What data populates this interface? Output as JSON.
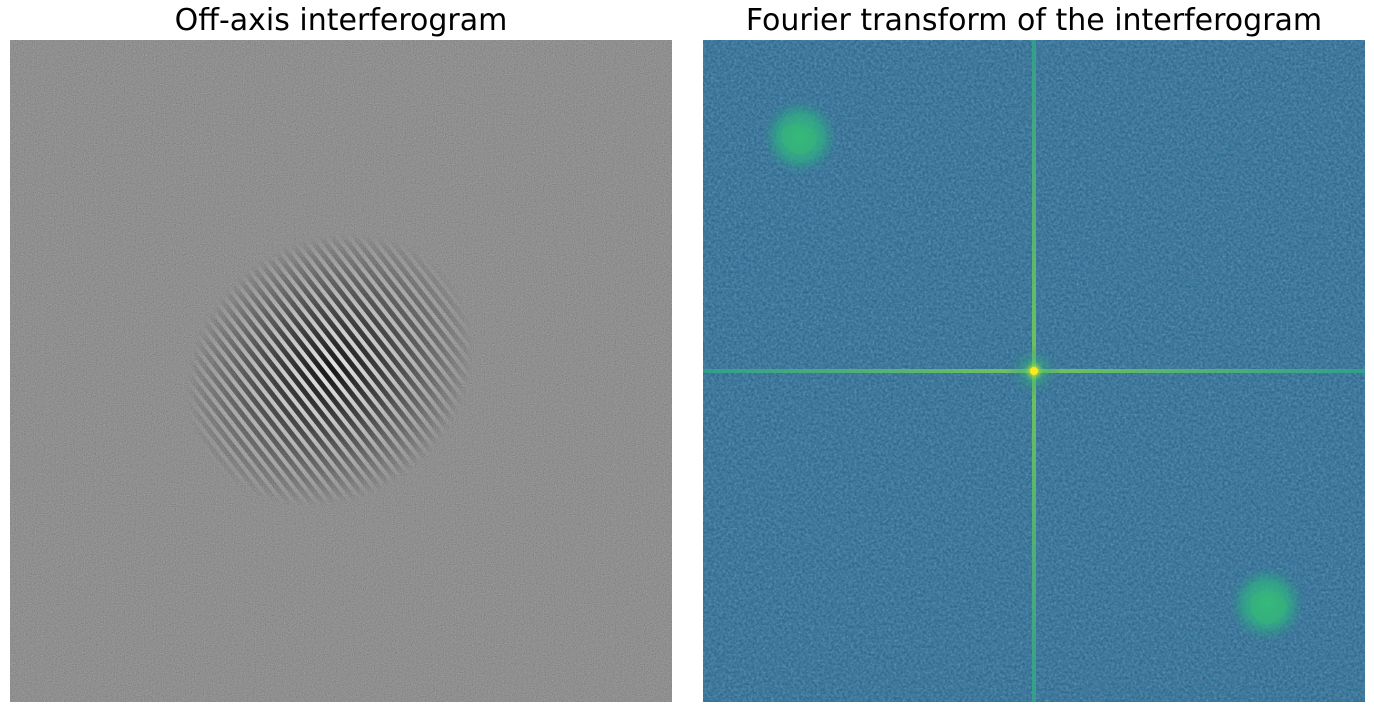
{
  "figure": {
    "panels": [
      {
        "title": "Off-axis interferogram",
        "colormap": "gray",
        "background_color": "#5a5a5a"
      },
      {
        "title": "Fourier transform of the interferogram",
        "colormap": "viridis",
        "background_color": "#2d6a8e",
        "dc_peak_color": "#fde725",
        "axis_line_color": "#3fbf85",
        "sideband_color": "#35b779"
      }
    ]
  }
}
